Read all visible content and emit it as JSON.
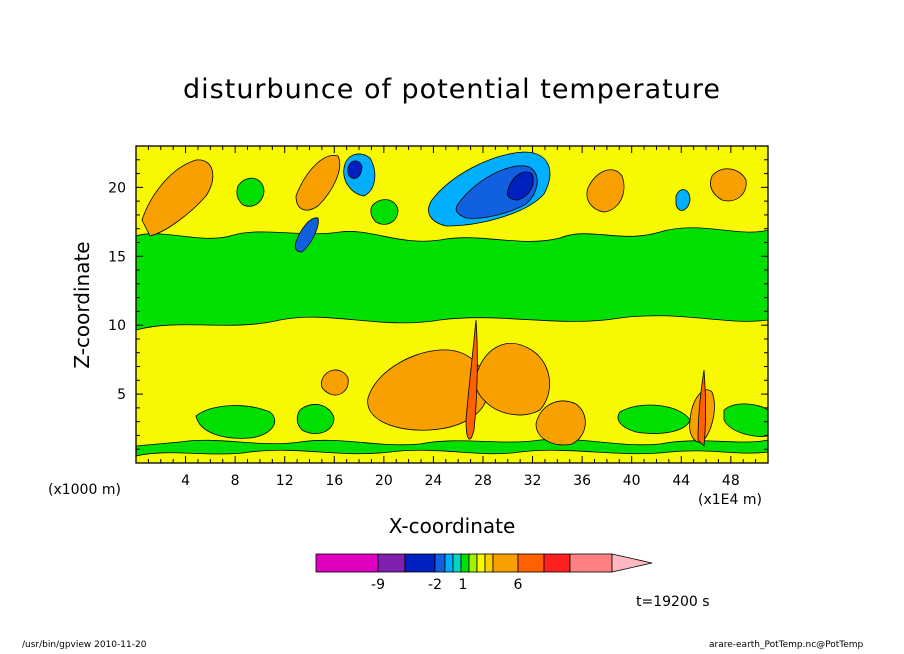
{
  "chart_data": {
    "type": "heatmap",
    "title": "disturbunce of potential temperature",
    "xlabel": "X-coordinate",
    "ylabel": "Z-coordinate",
    "x_unit_label": "(x1E4 m)",
    "y_unit_label": "(x1000 m)",
    "xlim": [
      0,
      51
    ],
    "ylim": [
      0,
      23
    ],
    "x_ticks": [
      4,
      8,
      12,
      16,
      20,
      24,
      28,
      32,
      36,
      40,
      44,
      48
    ],
    "y_ticks": [
      5,
      10,
      15,
      20
    ],
    "colorbar_labels": [
      "-9",
      "-2",
      "1",
      "6"
    ],
    "colorbar_colors": [
      "#e000c0",
      "#8020b0",
      "#0020c0",
      "#1060e0",
      "#00b0ff",
      "#00d8c0",
      "#00e000",
      "#a0f000",
      "#f8f800",
      "#f8d000",
      "#f8a000",
      "#ff6000",
      "#ff2020",
      "#ff8080",
      "#ffb8c0"
    ],
    "time_label": "t=19200 s"
  },
  "footer": {
    "left": "/usr/bin/gpview   2010-11-20",
    "right": "arare-earth_PotTemp.nc@PotTemp"
  }
}
